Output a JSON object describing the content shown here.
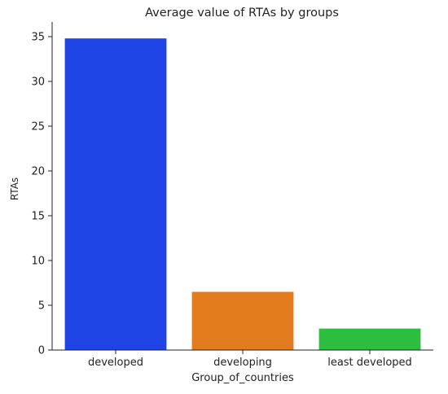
{
  "chart_data": {
    "type": "bar",
    "title": "Average value of RTAs by groups",
    "xlabel": "Group_of_countries",
    "ylabel": "RTAs",
    "categories": [
      "developed",
      "developing",
      "least developed"
    ],
    "values": [
      34.8,
      6.5,
      2.4
    ],
    "colors": [
      "#1f44e6",
      "#e37c1f",
      "#2bbe3f"
    ],
    "ylim": [
      0,
      36.5
    ],
    "yticks": [
      0,
      5,
      10,
      15,
      20,
      25,
      30,
      35
    ],
    "grid": false,
    "legend": "none"
  }
}
